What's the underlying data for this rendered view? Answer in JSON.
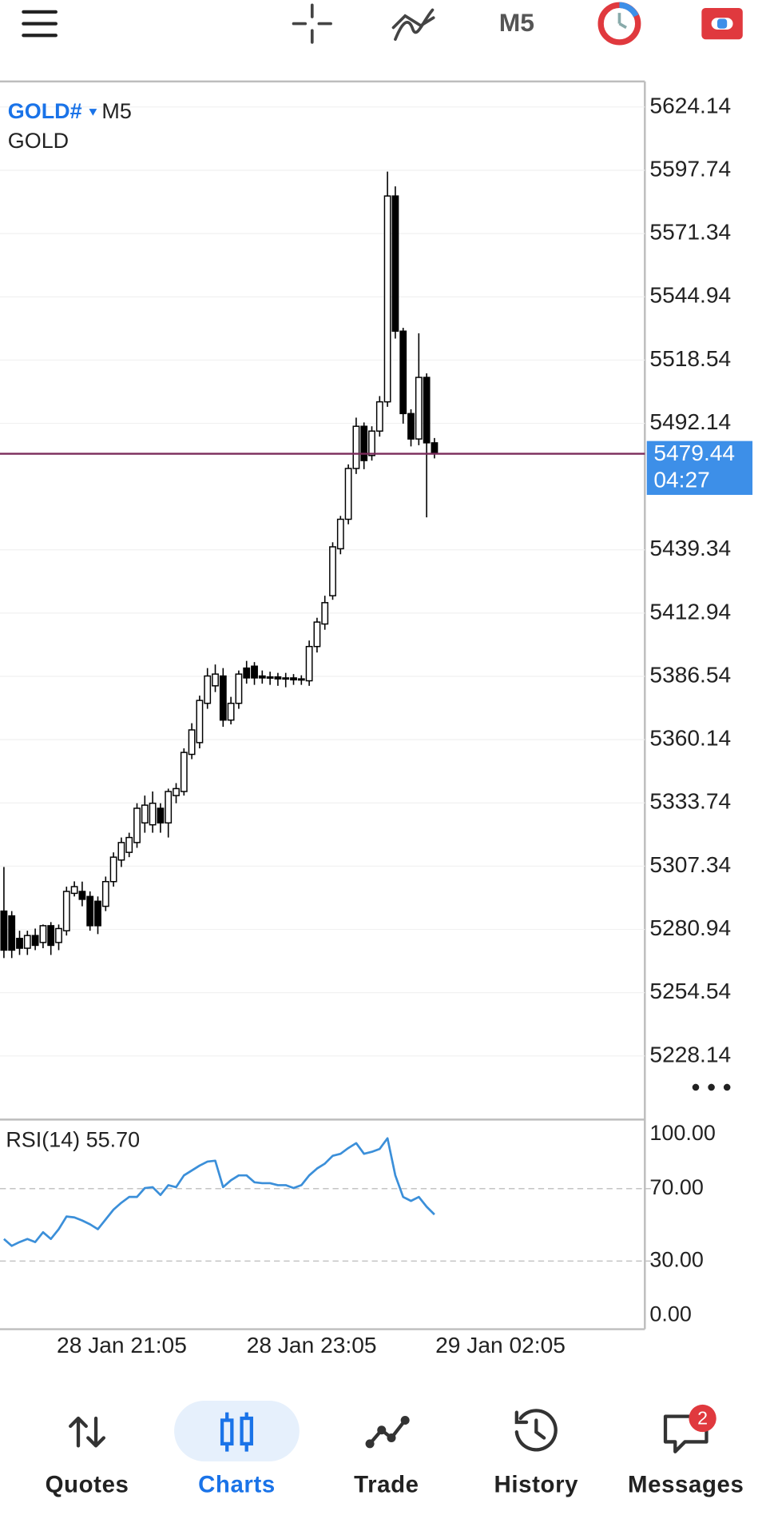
{
  "toolbar": {
    "timeframe": "M5"
  },
  "chart": {
    "type": "candlestick",
    "symbol": "GOLD#",
    "timeframe": "M5",
    "description": "GOLD",
    "ylim": [
      5202.0,
      5634.8
    ],
    "yticks": [
      5624.14,
      5597.74,
      5571.34,
      5544.94,
      5518.54,
      5492.14,
      5439.34,
      5412.94,
      5386.54,
      5360.14,
      5333.74,
      5307.34,
      5280.94,
      5254.54,
      5228.14
    ],
    "grid": true,
    "up_color": "#ffffff",
    "down_color": "#000000",
    "open": [
      5288.6,
      5286.6,
      5277.2,
      5273.1,
      5278.4,
      5275.5,
      5282.5,
      5275.5,
      5280.4,
      5296.0,
      5296.8,
      5294.7,
      5292.7,
      5290.6,
      5300.9,
      5309.9,
      5313.1,
      5317.2,
      5325.4,
      5324.6,
      5331.5,
      5325.4,
      5336.8,
      5338.5,
      5354.0,
      5358.9,
      5375.3,
      5382.6,
      5386.7,
      5368.3,
      5375.3,
      5390.0,
      5390.8,
      5386.7,
      5385.9,
      5386.3,
      5385.5,
      5385.9,
      5385.1,
      5384.7,
      5399.0,
      5408.4,
      5420.2,
      5439.8,
      5452.1,
      5473.3,
      5490.9,
      5478.7,
      5488.9,
      5501.1,
      5587.0,
      5530.6,
      5496.2,
      5485.6,
      5511.3,
      5484.0
    ],
    "high": [
      5307.0,
      5288.6,
      5280.4,
      5280.4,
      5281.3,
      5283.0,
      5284.0,
      5283.0,
      5298.8,
      5301.0,
      5300.9,
      5296.8,
      5294.7,
      5303.0,
      5313.1,
      5319.3,
      5321.3,
      5333.6,
      5336.8,
      5338.5,
      5333.6,
      5339.7,
      5342.0,
      5356.5,
      5367.0,
      5378.5,
      5390.0,
      5391.5,
      5390.0,
      5378.0,
      5389.0,
      5393.0,
      5392.5,
      5389.0,
      5388.5,
      5388.0,
      5388.0,
      5387.5,
      5387.0,
      5401.5,
      5411.0,
      5420.2,
      5442.5,
      5453.5,
      5475.0,
      5494.5,
      5492.5,
      5490.9,
      5503.5,
      5597.2,
      5591.0,
      5532.0,
      5498.0,
      5529.7,
      5513.0,
      5486.0
    ],
    "low": [
      5269.0,
      5269.0,
      5270.3,
      5270.3,
      5272.3,
      5273.1,
      5270.3,
      5272.3,
      5278.4,
      5294.7,
      5290.6,
      5280.4,
      5279.0,
      5288.6,
      5298.8,
      5307.0,
      5311.1,
      5315.0,
      5321.3,
      5321.3,
      5321.3,
      5319.3,
      5333.6,
      5336.8,
      5352.0,
      5356.5,
      5373.0,
      5380.0,
      5365.5,
      5366.5,
      5373.0,
      5383.5,
      5383.0,
      5383.5,
      5383.0,
      5382.6,
      5382.0,
      5383.0,
      5383.0,
      5382.6,
      5396.5,
      5406.0,
      5418.5,
      5437.5,
      5450.0,
      5471.0,
      5473.0,
      5476.6,
      5486.6,
      5499.0,
      5527.5,
      5492.0,
      5482.5,
      5483.0,
      5452.9,
      5477.5
    ],
    "close": [
      5272.3,
      5272.3,
      5273.1,
      5278.4,
      5274.3,
      5282.5,
      5274.3,
      5281.3,
      5296.8,
      5298.8,
      5293.5,
      5282.5,
      5282.5,
      5300.9,
      5311.1,
      5317.2,
      5319.3,
      5331.5,
      5332.8,
      5333.6,
      5325.4,
      5338.5,
      5339.7,
      5354.8,
      5364.2,
      5376.5,
      5386.7,
      5387.5,
      5368.3,
      5375.3,
      5387.5,
      5385.9,
      5385.9,
      5385.9,
      5386.3,
      5385.5,
      5385.9,
      5385.1,
      5385.5,
      5399.0,
      5409.2,
      5417.3,
      5440.6,
      5452.1,
      5473.3,
      5490.9,
      5476.6,
      5488.9,
      5501.1,
      5587.0,
      5530.6,
      5496.2,
      5485.6,
      5511.3,
      5484.0,
      5479.44
    ],
    "current_price": 5479.44,
    "countdown": "04:27",
    "xlabels": [
      "28 Jan 21:05",
      "28 Jan 23:05",
      "29 Jan 02:05"
    ]
  },
  "indicator": {
    "type": "line",
    "name": "RSI(14)",
    "last": {
      "value": 55.7,
      "label": "55.70"
    },
    "color": "#3b8fd9",
    "ylim": [
      -7.6,
      108.1
    ],
    "yticks": [
      {
        "value": 100,
        "label": "100.00"
      },
      {
        "value": 70,
        "label": "70.00"
      },
      {
        "value": 30,
        "label": "30.00"
      },
      {
        "value": 0,
        "label": "0.00"
      }
    ],
    "levels": [
      70,
      30
    ],
    "values": [
      42.2,
      38.4,
      40.5,
      42.2,
      40.5,
      45.9,
      42.2,
      47.6,
      54.6,
      54.1,
      52.4,
      50.3,
      47.6,
      53.0,
      58.4,
      62.2,
      65.4,
      65.4,
      70.3,
      70.8,
      66.5,
      71.9,
      70.8,
      77.3,
      80.0,
      82.7,
      84.9,
      85.4,
      70.8,
      74.6,
      77.3,
      77.3,
      73.5,
      73.0,
      73.0,
      71.9,
      71.9,
      70.3,
      71.9,
      77.3,
      81.1,
      83.8,
      88.1,
      89.2,
      92.4,
      95.1,
      89.2,
      90.3,
      91.9,
      97.8,
      77.3,
      65.4,
      63.2,
      65.4,
      60.0,
      55.7
    ]
  },
  "nav": {
    "items": [
      "Quotes",
      "Charts",
      "Trade",
      "History",
      "Messages"
    ],
    "badge": 2
  }
}
